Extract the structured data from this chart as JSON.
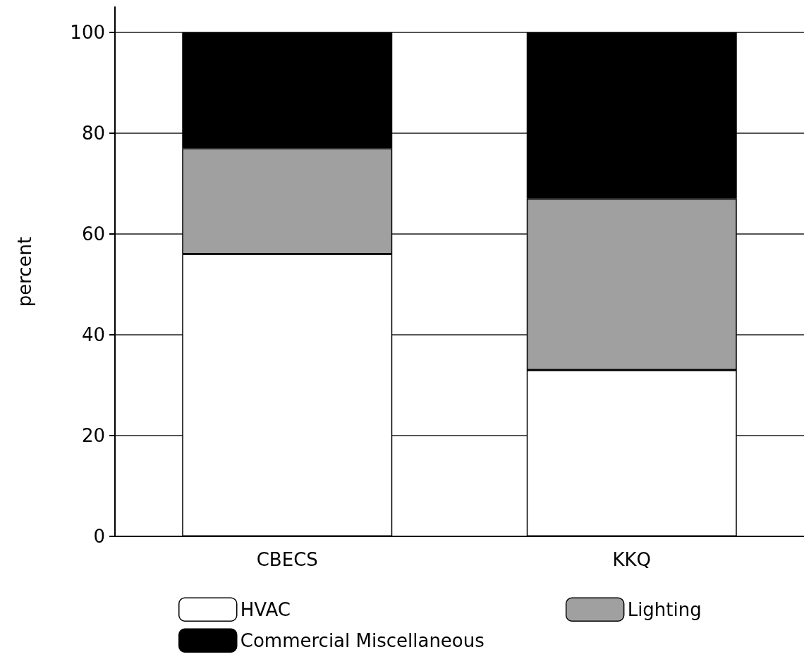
{
  "chart_data": {
    "type": "bar",
    "ylabel": "percent",
    "categories": [
      "CBECS",
      "KKQ"
    ],
    "stacked": true,
    "series": [
      {
        "name": "HVAC",
        "color": "#ffffff",
        "values": [
          56,
          33
        ]
      },
      {
        "name": "Lighting",
        "color": "#a0a0a0",
        "values": [
          21,
          34
        ]
      },
      {
        "name": "Commercial Miscellaneous",
        "color": "#000000",
        "values": [
          23,
          33
        ]
      }
    ],
    "ylim": [
      0,
      105
    ],
    "yticks": [
      0,
      20,
      40,
      60,
      80,
      100
    ],
    "grid": "y",
    "legend": "bottom"
  }
}
